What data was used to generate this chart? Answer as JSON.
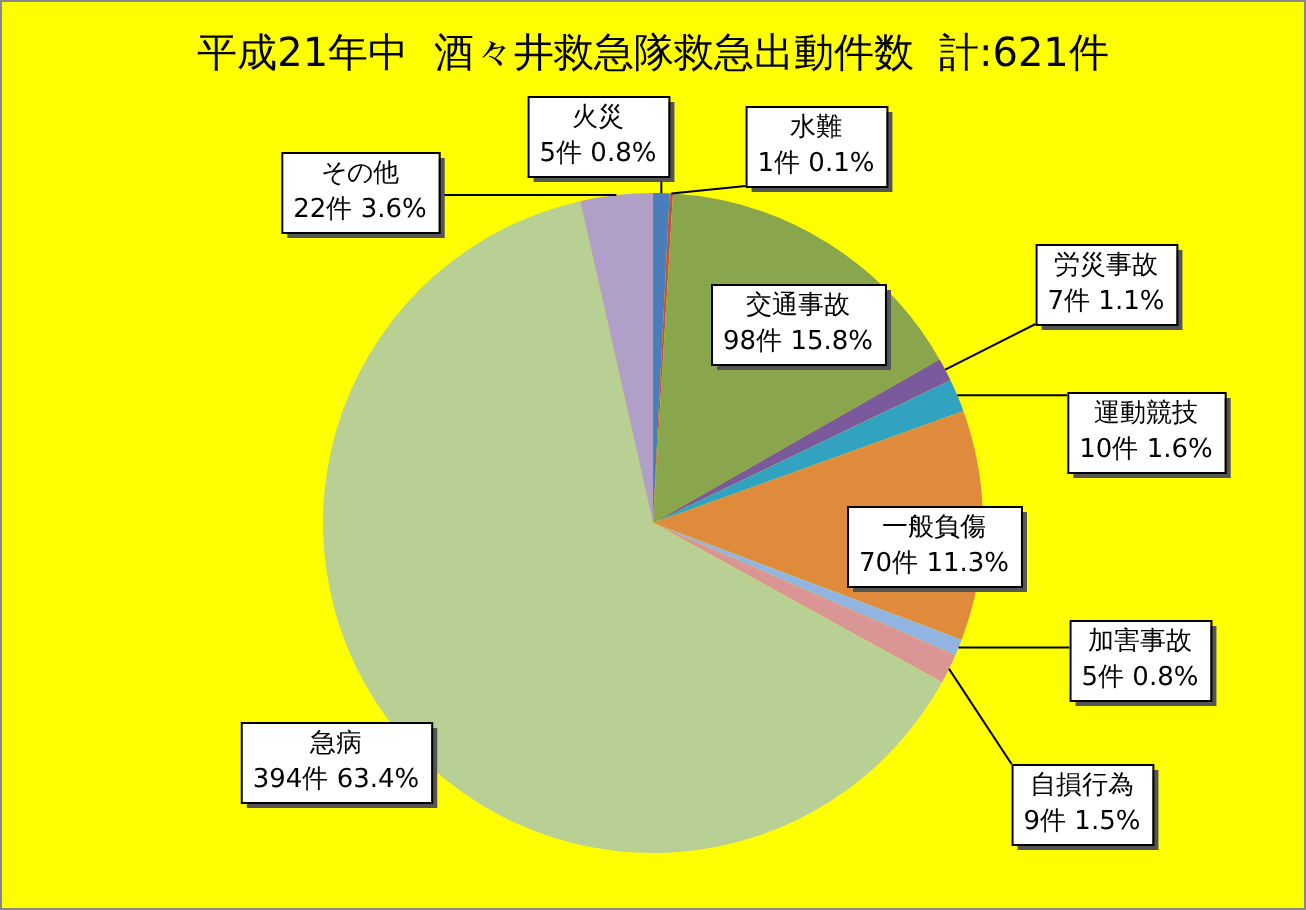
{
  "chart_data": {
    "type": "pie",
    "title": "平成21年中  酒々井救急隊救急出動件数  計:621件",
    "categories": [
      "火災",
      "水難",
      "交通事故",
      "労災事故",
      "運動競技",
      "一般負傷",
      "加害事故",
      "自損行為",
      "急病",
      "その他"
    ],
    "values": [
      5,
      1,
      98,
      7,
      10,
      70,
      5,
      9,
      394,
      22
    ],
    "colors": [
      "#4a7ebb",
      "#c0504d",
      "#8aa64c",
      "#7a5a9c",
      "#31a3c0",
      "#e08a3c",
      "#92b4e0",
      "#d99694",
      "#b9d094",
      "#b0a0c8"
    ],
    "value_labels": [
      "5件 0.8%",
      "1件 0.1%",
      "98件 15.8%",
      "7件 1.1%",
      "10件 1.6%",
      "70件 11.3%",
      "5件 0.8%",
      "9件 1.5%",
      "394件 63.4%",
      "22件 3.6%"
    ],
    "legend": false
  }
}
